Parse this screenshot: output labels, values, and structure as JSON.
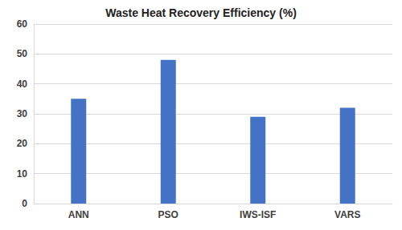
{
  "chart_data": {
    "type": "bar",
    "title": "Waste Heat Recovery Efficiency (%)",
    "categories": [
      "ANN",
      "PSO",
      "IWS-ISF",
      "VARS"
    ],
    "values": [
      35,
      48,
      29,
      32
    ],
    "color": "#4472c4",
    "ylim": [
      0,
      60
    ],
    "yticks": [
      0,
      10,
      20,
      30,
      40,
      50,
      60
    ],
    "grid": true
  }
}
